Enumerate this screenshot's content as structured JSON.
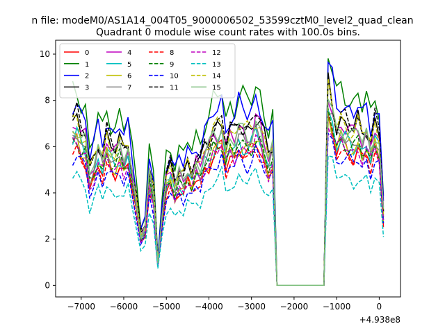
{
  "suptitle": "n file: modeM0/AS1A14_004T05_9000006502_53599cztM0_level2_quad_clean",
  "chart_data": {
    "type": "line",
    "title": "Quadrant 0 module wise count rates with 100.0s bins.",
    "xlabel": "",
    "ylabel": "",
    "x_offset_label": "+4.938e8",
    "xlim": [
      -7600,
      500
    ],
    "ylim": [
      -0.5,
      10.6
    ],
    "x_ticks": [
      -7000,
      -6000,
      -5000,
      -4000,
      -3000,
      -2000,
      -1000,
      0
    ],
    "x_tick_labels": [
      "−7000",
      "−6000",
      "−5000",
      "−4000",
      "−3000",
      "−2000",
      "−1000",
      "0"
    ],
    "y_ticks": [
      0,
      2,
      4,
      6,
      8,
      10
    ],
    "y_tick_labels": [
      "0",
      "2",
      "4",
      "6",
      "8",
      "10"
    ],
    "grid": false,
    "legend_position": "top-left",
    "legend_columns": 4,
    "profile": {
      "x": [
        -7200,
        -7100,
        -7000,
        -6900,
        -6800,
        -6700,
        -6600,
        -6500,
        -6400,
        -6300,
        -6200,
        -6100,
        -6000,
        -5900,
        -5800,
        -5700,
        -5600,
        -5500,
        -5400,
        -5300,
        -5200,
        -5100,
        -5000,
        -4900,
        -4800,
        -4700,
        -4600,
        -4500,
        -4400,
        -4300,
        -4200,
        -4100,
        -4000,
        -3900,
        -3800,
        -3700,
        -3600,
        -3500,
        -3400,
        -3300,
        -3200,
        -3100,
        -3000,
        -2900,
        -2800,
        -2700,
        -2600,
        -2500,
        -2400,
        -2300,
        -2200,
        -2100,
        -2000,
        -1900,
        -1800,
        -1700,
        -1600,
        -1500,
        -1400,
        -1300,
        -1200,
        -1100,
        -1000,
        -900,
        -800,
        -700,
        -600,
        -500,
        -400,
        -300,
        -200,
        -100,
        0,
        100
      ],
      "shape": [
        0.83,
        0.85,
        0.78,
        0.76,
        0.58,
        0.64,
        0.72,
        0.66,
        0.76,
        0.7,
        0.68,
        0.73,
        0.67,
        0.72,
        0.58,
        0.44,
        0.26,
        0.3,
        0.58,
        0.48,
        0.12,
        0.36,
        0.56,
        0.6,
        0.52,
        0.58,
        0.55,
        0.62,
        0.58,
        0.64,
        0.62,
        0.7,
        0.72,
        0.78,
        0.8,
        0.84,
        0.71,
        0.78,
        0.76,
        0.82,
        0.8,
        0.78,
        0.8,
        0.86,
        0.82,
        0.74,
        0.66,
        0.72,
        0.0,
        0.0,
        0.0,
        0.0,
        0.0,
        0.0,
        0.0,
        0.0,
        0.0,
        0.0,
        0.0,
        0.0,
        1.0,
        0.92,
        0.8,
        0.84,
        0.82,
        0.8,
        0.78,
        0.82,
        0.76,
        0.8,
        0.72,
        0.82,
        0.76,
        0.38
      ]
    },
    "series": [
      {
        "name": "0",
        "color": "#ff0000",
        "dash": "solid",
        "peak": 7.2
      },
      {
        "name": "1",
        "color": "#008000",
        "dash": "solid",
        "peak": 10.1
      },
      {
        "name": "2",
        "color": "#0000ff",
        "dash": "solid",
        "peak": 9.5
      },
      {
        "name": "3",
        "color": "#000000",
        "dash": "solid",
        "peak": 8.6
      },
      {
        "name": "4",
        "color": "#bf00bf",
        "dash": "solid",
        "peak": 8.3
      },
      {
        "name": "5",
        "color": "#00bfbf",
        "dash": "solid",
        "peak": 7.6
      },
      {
        "name": "6",
        "color": "#bfbf00",
        "dash": "solid",
        "peak": 7.4
      },
      {
        "name": "7",
        "color": "#808080",
        "dash": "solid",
        "peak": 7.8
      },
      {
        "name": "8",
        "color": "#ff0000",
        "dash": "dashed",
        "peak": 7.0
      },
      {
        "name": "9",
        "color": "#008000",
        "dash": "dashed",
        "peak": 7.5
      },
      {
        "name": "10",
        "color": "#0000ff",
        "dash": "dashed",
        "peak": 6.7
      },
      {
        "name": "11",
        "color": "#000000",
        "dash": "dashed",
        "peak": 8.7
      },
      {
        "name": "12",
        "color": "#bf00bf",
        "dash": "dashed",
        "peak": 7.3
      },
      {
        "name": "13",
        "color": "#00bfbf",
        "dash": "dashed",
        "peak": 5.7
      },
      {
        "name": "14",
        "color": "#bfbf00",
        "dash": "dashed",
        "peak": 8.5
      },
      {
        "name": "15",
        "color": "#7fbf7f",
        "dash": "solid",
        "peak": 8.2
      }
    ]
  }
}
